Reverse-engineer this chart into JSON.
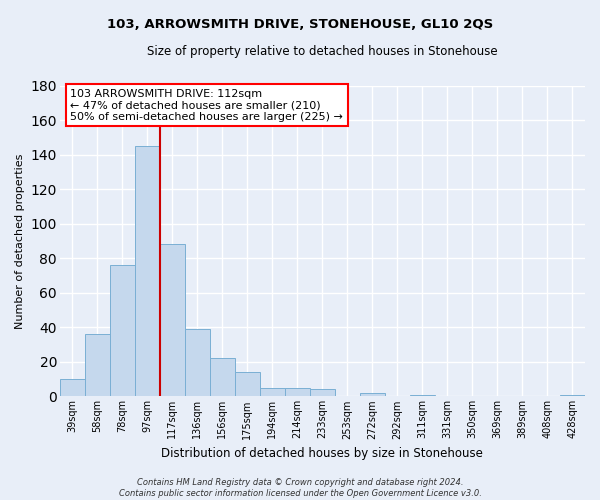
{
  "title": "103, ARROWSMITH DRIVE, STONEHOUSE, GL10 2QS",
  "subtitle": "Size of property relative to detached houses in Stonehouse",
  "xlabel": "Distribution of detached houses by size in Stonehouse",
  "ylabel": "Number of detached properties",
  "bar_labels": [
    "39sqm",
    "58sqm",
    "78sqm",
    "97sqm",
    "117sqm",
    "136sqm",
    "156sqm",
    "175sqm",
    "194sqm",
    "214sqm",
    "233sqm",
    "253sqm",
    "272sqm",
    "292sqm",
    "311sqm",
    "331sqm",
    "350sqm",
    "369sqm",
    "389sqm",
    "408sqm",
    "428sqm"
  ],
  "bar_values": [
    10,
    36,
    76,
    145,
    88,
    39,
    22,
    14,
    5,
    5,
    4,
    0,
    2,
    0,
    1,
    0,
    0,
    0,
    0,
    0,
    1
  ],
  "bar_color": "#c5d8ed",
  "bar_edge_color": "#7aafd4",
  "vline_color": "#cc0000",
  "annotation_lines": [
    "103 ARROWSMITH DRIVE: 112sqm",
    "← 47% of detached houses are smaller (210)",
    "50% of semi-detached houses are larger (225) →"
  ],
  "ylim": [
    0,
    180
  ],
  "yticks": [
    0,
    20,
    40,
    60,
    80,
    100,
    120,
    140,
    160,
    180
  ],
  "footer": "Contains HM Land Registry data © Crown copyright and database right 2024.\nContains public sector information licensed under the Open Government Licence v3.0.",
  "bg_color": "#e8eef8",
  "plot_bg_color": "#e8eef8",
  "grid_color": "#ffffff"
}
